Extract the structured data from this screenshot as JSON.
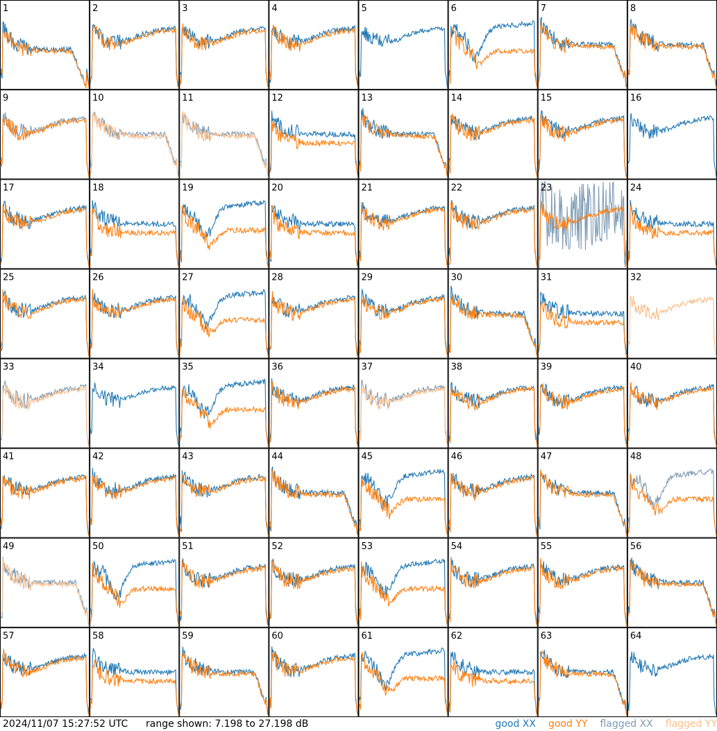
{
  "footer": {
    "timestamp": "2024/11/07 15:27:52 UTC",
    "range_label": "range shown: 7.198 to 27.198 dB"
  },
  "legend": [
    {
      "label": "good XX",
      "color": "#1f77b4"
    },
    {
      "label": "good YY",
      "color": "#ff7f0e"
    },
    {
      "label": "flagged XX",
      "color": "#7f9bb4"
    },
    {
      "label": "flagged YY",
      "color": "#fbbf8c"
    }
  ],
  "chart_data": {
    "type": "line",
    "range_db": [
      7.198,
      27.198
    ],
    "grid": {
      "rows": 8,
      "cols": 8
    },
    "panels": [
      {
        "id": "1",
        "xx": "good",
        "yy": "good",
        "shape": "hi"
      },
      {
        "id": "2",
        "xx": "good",
        "yy": "good",
        "shape": "u"
      },
      {
        "id": "3",
        "xx": "good",
        "yy": "good",
        "shape": "u"
      },
      {
        "id": "4",
        "xx": "good",
        "yy": "good",
        "shape": "u"
      },
      {
        "id": "5",
        "xx": "good",
        "yy": "good",
        "shape": "xxonly"
      },
      {
        "id": "6",
        "xx": "good",
        "yy": "good",
        "shape": "dip"
      },
      {
        "id": "7",
        "xx": "good",
        "yy": "good",
        "shape": "drop"
      },
      {
        "id": "8",
        "xx": "good",
        "yy": "good",
        "shape": "drop"
      },
      {
        "id": "9",
        "xx": "flagged",
        "yy": "good",
        "shape": "u"
      },
      {
        "id": "10",
        "xx": "flagged",
        "yy": "flagged",
        "shape": "drop"
      },
      {
        "id": "11",
        "xx": "flagged",
        "yy": "flagged",
        "shape": "drop"
      },
      {
        "id": "12",
        "xx": "good",
        "yy": "good",
        "shape": "split"
      },
      {
        "id": "13",
        "xx": "good",
        "yy": "good",
        "shape": "drop"
      },
      {
        "id": "14",
        "xx": "good",
        "yy": "good",
        "shape": "u"
      },
      {
        "id": "15",
        "xx": "good",
        "yy": "good",
        "shape": "u"
      },
      {
        "id": "16",
        "xx": "good",
        "yy": "good",
        "shape": "xxonly"
      },
      {
        "id": "17",
        "xx": "good",
        "yy": "good",
        "shape": "u"
      },
      {
        "id": "18",
        "xx": "good",
        "yy": "good",
        "shape": "split"
      },
      {
        "id": "19",
        "xx": "good",
        "yy": "good",
        "shape": "dip"
      },
      {
        "id": "20",
        "xx": "good",
        "yy": "good",
        "shape": "split"
      },
      {
        "id": "21",
        "xx": "good",
        "yy": "good",
        "shape": "u"
      },
      {
        "id": "22",
        "xx": "good",
        "yy": "good",
        "shape": "u"
      },
      {
        "id": "23",
        "xx": "flagged",
        "yy": "good",
        "shape": "noise"
      },
      {
        "id": "24",
        "xx": "good",
        "yy": "good",
        "shape": "split"
      },
      {
        "id": "25",
        "xx": "good",
        "yy": "good",
        "shape": "u"
      },
      {
        "id": "26",
        "xx": "good",
        "yy": "good",
        "shape": "u"
      },
      {
        "id": "27",
        "xx": "good",
        "yy": "good",
        "shape": "dip"
      },
      {
        "id": "28",
        "xx": "good",
        "yy": "good",
        "shape": "u"
      },
      {
        "id": "29",
        "xx": "good",
        "yy": "good",
        "shape": "u"
      },
      {
        "id": "30",
        "xx": "good",
        "yy": "good",
        "shape": "drop"
      },
      {
        "id": "31",
        "xx": "good",
        "yy": "good",
        "shape": "split"
      },
      {
        "id": "32",
        "xx": "flagged",
        "yy": "flagged",
        "shape": "yyonly"
      },
      {
        "id": "33",
        "xx": "flagged",
        "yy": "flagged",
        "shape": "u"
      },
      {
        "id": "34",
        "xx": "good",
        "yy": "good",
        "shape": "xxonly"
      },
      {
        "id": "35",
        "xx": "good",
        "yy": "good",
        "shape": "dip"
      },
      {
        "id": "36",
        "xx": "good",
        "yy": "good",
        "shape": "u"
      },
      {
        "id": "37",
        "xx": "flagged",
        "yy": "flagged",
        "shape": "u"
      },
      {
        "id": "38",
        "xx": "good",
        "yy": "good",
        "shape": "u"
      },
      {
        "id": "39",
        "xx": "good",
        "yy": "good",
        "shape": "u"
      },
      {
        "id": "40",
        "xx": "good",
        "yy": "good",
        "shape": "u"
      },
      {
        "id": "41",
        "xx": "good",
        "yy": "good",
        "shape": "u"
      },
      {
        "id": "42",
        "xx": "good",
        "yy": "good",
        "shape": "u"
      },
      {
        "id": "43",
        "xx": "good",
        "yy": "good",
        "shape": "u"
      },
      {
        "id": "44",
        "xx": "good",
        "yy": "good",
        "shape": "drop"
      },
      {
        "id": "45",
        "xx": "good",
        "yy": "good",
        "shape": "dip"
      },
      {
        "id": "46",
        "xx": "good",
        "yy": "good",
        "shape": "u"
      },
      {
        "id": "47",
        "xx": "good",
        "yy": "good",
        "shape": "drop"
      },
      {
        "id": "48",
        "xx": "flagged",
        "yy": "good",
        "shape": "dip"
      },
      {
        "id": "49",
        "xx": "flagged",
        "yy": "flagged",
        "shape": "drop"
      },
      {
        "id": "50",
        "xx": "good",
        "yy": "good",
        "shape": "dip"
      },
      {
        "id": "51",
        "xx": "good",
        "yy": "good",
        "shape": "u"
      },
      {
        "id": "52",
        "xx": "good",
        "yy": "good",
        "shape": "u"
      },
      {
        "id": "53",
        "xx": "good",
        "yy": "good",
        "shape": "dip"
      },
      {
        "id": "54",
        "xx": "good",
        "yy": "good",
        "shape": "u"
      },
      {
        "id": "55",
        "xx": "good",
        "yy": "good",
        "shape": "u"
      },
      {
        "id": "56",
        "xx": "good",
        "yy": "good",
        "shape": "drop"
      },
      {
        "id": "57",
        "xx": "good",
        "yy": "good",
        "shape": "u"
      },
      {
        "id": "58",
        "xx": "good",
        "yy": "good",
        "shape": "split"
      },
      {
        "id": "59",
        "xx": "good",
        "yy": "good",
        "shape": "drop"
      },
      {
        "id": "60",
        "xx": "good",
        "yy": "good",
        "shape": "u"
      },
      {
        "id": "61",
        "xx": "good",
        "yy": "good",
        "shape": "dip"
      },
      {
        "id": "62",
        "xx": "good",
        "yy": "good",
        "shape": "split"
      },
      {
        "id": "63",
        "xx": "good",
        "yy": "good",
        "shape": "drop"
      },
      {
        "id": "64",
        "xx": "good",
        "yy": "good",
        "shape": "xxonly"
      }
    ]
  }
}
